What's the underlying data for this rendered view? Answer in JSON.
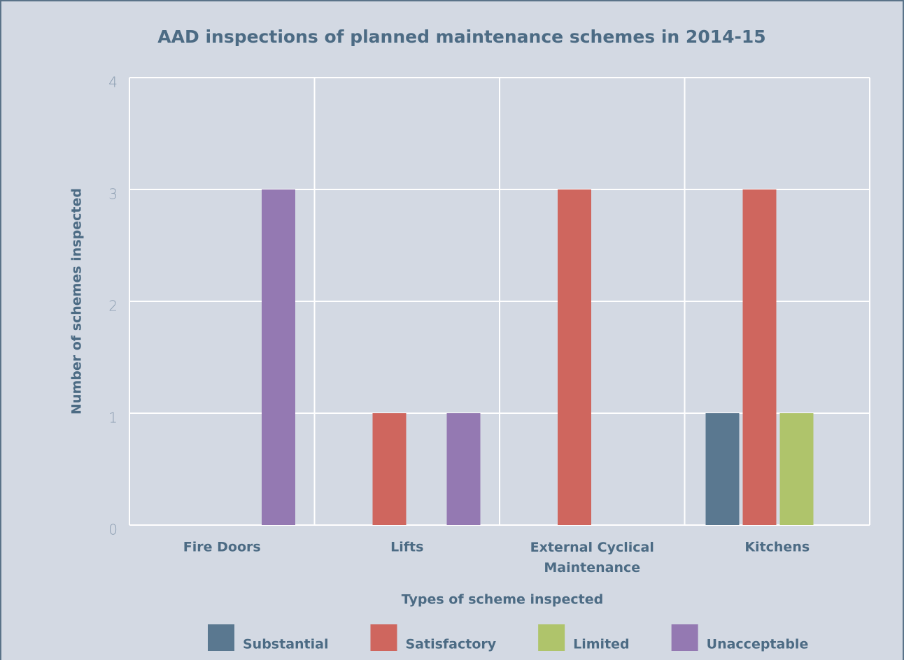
{
  "chart_data": {
    "type": "bar",
    "title": "AAD inspections of planned maintenance schemes in 2014-15",
    "x_label": "Types of scheme inspected",
    "y_label": "Number of schemes inspected",
    "categories": [
      "Fire Doors",
      "Lifts",
      "External Cyclical Maintenance",
      "Kitchens"
    ],
    "series": [
      {
        "name": "Substantial",
        "color": "#5a7890",
        "values": [
          0,
          0,
          0,
          1
        ]
      },
      {
        "name": "Satisfactory",
        "color": "#cf665e",
        "values": [
          0,
          1,
          3,
          3
        ]
      },
      {
        "name": "Limited",
        "color": "#afc46b",
        "values": [
          0,
          0,
          0,
          1
        ]
      },
      {
        "name": "Unacceptable",
        "color": "#9479b2",
        "values": [
          3,
          1,
          0,
          0
        ]
      }
    ],
    "ylim": [
      0,
      4
    ],
    "yticks": [
      0,
      1,
      2,
      3,
      4
    ],
    "grid": true,
    "legend": "bottom"
  }
}
